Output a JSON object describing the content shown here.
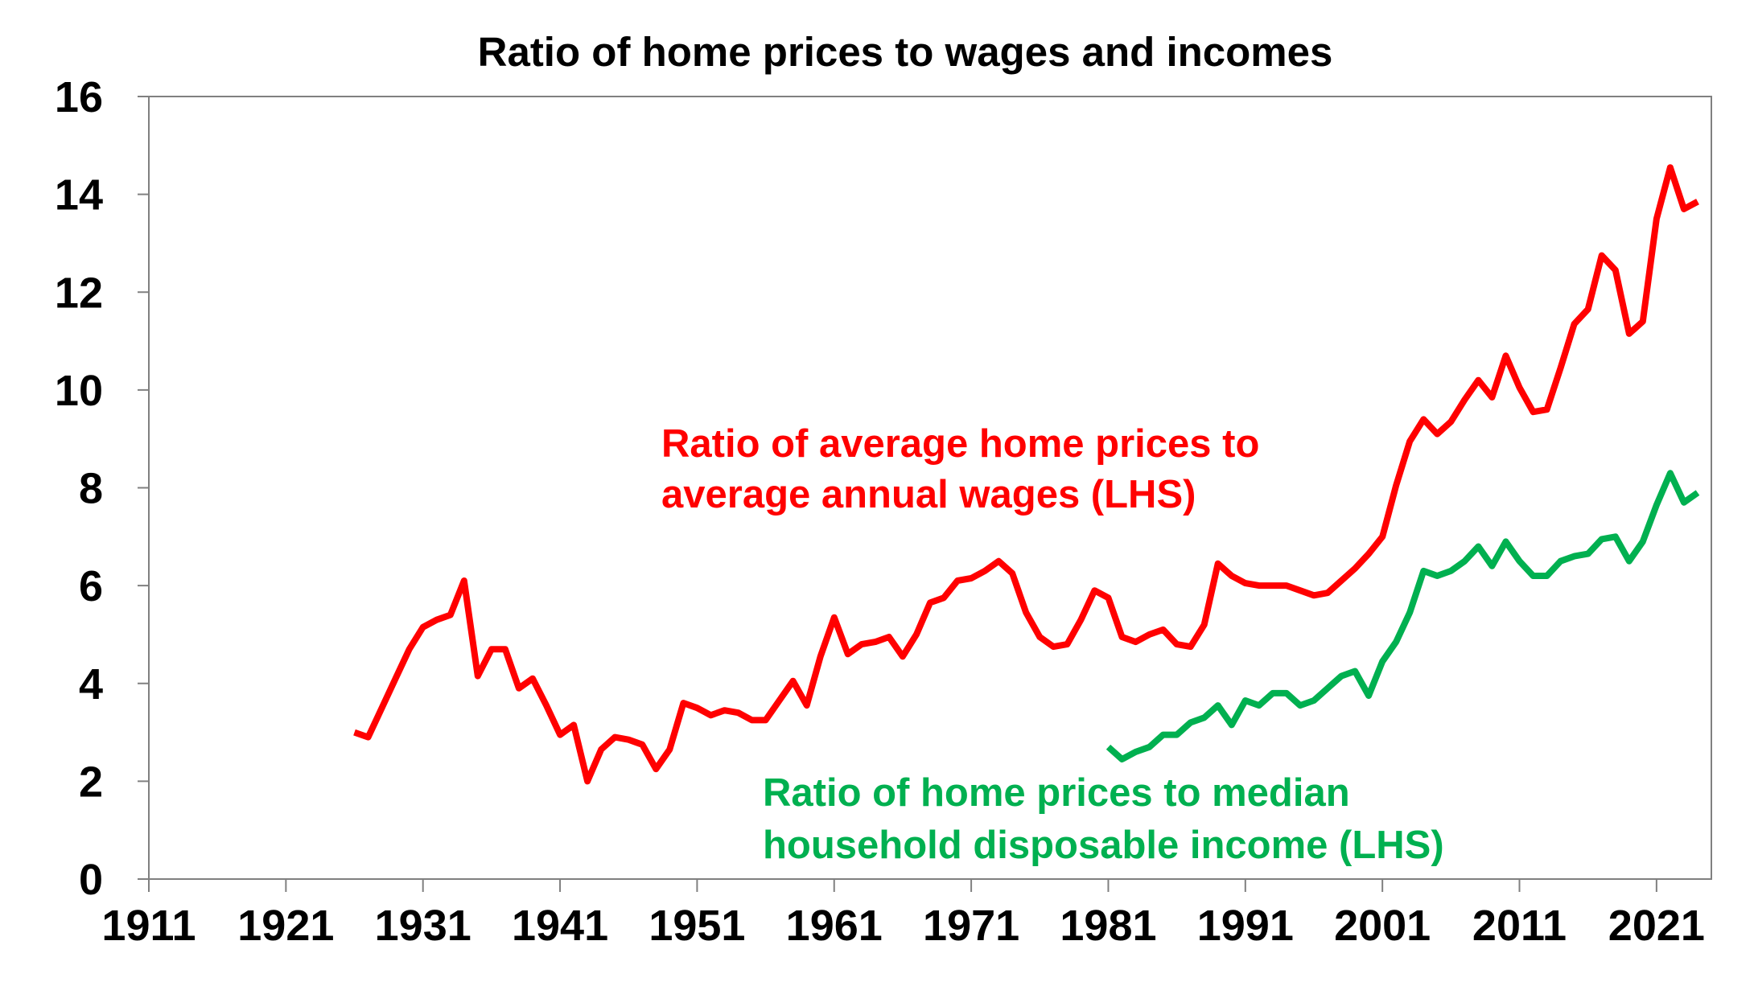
{
  "chart_data": {
    "type": "line",
    "title": "Ratio of home prices to wages and incomes",
    "xlabel": "",
    "ylabel": "",
    "xlim": [
      1911,
      2025
    ],
    "ylim": [
      0,
      16
    ],
    "x_ticks": [
      "1911",
      "1921",
      "1931",
      "1941",
      "1951",
      "1961",
      "1971",
      "1981",
      "1991",
      "2001",
      "2011",
      "2021"
    ],
    "y_ticks": [
      "0",
      "2",
      "4",
      "6",
      "8",
      "10",
      "12",
      "14",
      "16"
    ],
    "grid": false,
    "series": [
      {
        "annotation": [
          "Ratio of average home prices to",
          "average annual wages (LHS)"
        ],
        "color": "#FF0000",
        "points": [
          [
            1926,
            3.0
          ],
          [
            1927,
            2.9
          ],
          [
            1928,
            3.5
          ],
          [
            1929,
            4.1
          ],
          [
            1930,
            4.7
          ],
          [
            1931,
            5.15
          ],
          [
            1932,
            5.3
          ],
          [
            1933,
            5.4
          ],
          [
            1934,
            6.1
          ],
          [
            1935,
            4.15
          ],
          [
            1936,
            4.7
          ],
          [
            1937,
            4.7
          ],
          [
            1938,
            3.9
          ],
          [
            1939,
            4.1
          ],
          [
            1940,
            3.55
          ],
          [
            1941,
            2.95
          ],
          [
            1942,
            3.15
          ],
          [
            1943,
            2.0
          ],
          [
            1944,
            2.65
          ],
          [
            1945,
            2.9
          ],
          [
            1946,
            2.85
          ],
          [
            1947,
            2.75
          ],
          [
            1948,
            2.25
          ],
          [
            1949,
            2.65
          ],
          [
            1950,
            3.6
          ],
          [
            1951,
            3.5
          ],
          [
            1952,
            3.35
          ],
          [
            1953,
            3.45
          ],
          [
            1954,
            3.4
          ],
          [
            1955,
            3.25
          ],
          [
            1956,
            3.25
          ],
          [
            1957,
            3.65
          ],
          [
            1958,
            4.05
          ],
          [
            1959,
            3.55
          ],
          [
            1960,
            4.55
          ],
          [
            1961,
            5.35
          ],
          [
            1962,
            4.6
          ],
          [
            1963,
            4.8
          ],
          [
            1964,
            4.85
          ],
          [
            1965,
            4.95
          ],
          [
            1966,
            4.55
          ],
          [
            1967,
            5.0
          ],
          [
            1968,
            5.65
          ],
          [
            1969,
            5.75
          ],
          [
            1970,
            6.1
          ],
          [
            1971,
            6.15
          ],
          [
            1972,
            6.3
          ],
          [
            1973,
            6.5
          ],
          [
            1974,
            6.25
          ],
          [
            1975,
            5.45
          ],
          [
            1976,
            4.95
          ],
          [
            1977,
            4.75
          ],
          [
            1978,
            4.8
          ],
          [
            1979,
            5.3
          ],
          [
            1980,
            5.9
          ],
          [
            1981,
            5.75
          ],
          [
            1982,
            4.95
          ],
          [
            1983,
            4.85
          ],
          [
            1984,
            5.0
          ],
          [
            1985,
            5.1
          ],
          [
            1986,
            4.8
          ],
          [
            1987,
            4.75
          ],
          [
            1988,
            5.2
          ],
          [
            1989,
            6.45
          ],
          [
            1990,
            6.2
          ],
          [
            1991,
            6.05
          ],
          [
            1992,
            6.0
          ],
          [
            1993,
            6.0
          ],
          [
            1994,
            6.0
          ],
          [
            1995,
            5.9
          ],
          [
            1996,
            5.8
          ],
          [
            1997,
            5.85
          ],
          [
            1998,
            6.1
          ],
          [
            1999,
            6.35
          ],
          [
            2000,
            6.65
          ],
          [
            2001,
            7.0
          ],
          [
            2002,
            8.05
          ],
          [
            2003,
            8.95
          ],
          [
            2004,
            9.4
          ],
          [
            2005,
            9.1
          ],
          [
            2006,
            9.35
          ],
          [
            2007,
            9.8
          ],
          [
            2008,
            10.2
          ],
          [
            2009,
            9.85
          ],
          [
            2010,
            10.7
          ],
          [
            2011,
            10.05
          ],
          [
            2012,
            9.55
          ],
          [
            2013,
            9.6
          ],
          [
            2014,
            10.45
          ],
          [
            2015,
            11.35
          ],
          [
            2016,
            11.65
          ],
          [
            2017,
            12.75
          ],
          [
            2018,
            12.45
          ],
          [
            2019,
            11.15
          ],
          [
            2020,
            11.4
          ],
          [
            2021,
            13.5
          ],
          [
            2022,
            14.55
          ],
          [
            2023,
            13.7
          ],
          [
            2024,
            13.85
          ]
        ]
      },
      {
        "annotation": [
          "Ratio of home prices to median",
          "household disposable income (LHS)"
        ],
        "color": "#00B050",
        "points": [
          [
            1981,
            2.7
          ],
          [
            1982,
            2.45
          ],
          [
            1983,
            2.6
          ],
          [
            1984,
            2.7
          ],
          [
            1985,
            2.95
          ],
          [
            1986,
            2.95
          ],
          [
            1987,
            3.2
          ],
          [
            1988,
            3.3
          ],
          [
            1989,
            3.55
          ],
          [
            1990,
            3.15
          ],
          [
            1991,
            3.65
          ],
          [
            1992,
            3.55
          ],
          [
            1993,
            3.8
          ],
          [
            1994,
            3.8
          ],
          [
            1995,
            3.55
          ],
          [
            1996,
            3.65
          ],
          [
            1997,
            3.9
          ],
          [
            1998,
            4.15
          ],
          [
            1999,
            4.25
          ],
          [
            2000,
            3.75
          ],
          [
            2001,
            4.45
          ],
          [
            2002,
            4.85
          ],
          [
            2003,
            5.45
          ],
          [
            2004,
            6.3
          ],
          [
            2005,
            6.2
          ],
          [
            2006,
            6.3
          ],
          [
            2007,
            6.5
          ],
          [
            2008,
            6.8
          ],
          [
            2009,
            6.4
          ],
          [
            2010,
            6.9
          ],
          [
            2011,
            6.5
          ],
          [
            2012,
            6.2
          ],
          [
            2013,
            6.2
          ],
          [
            2014,
            6.5
          ],
          [
            2015,
            6.6
          ],
          [
            2016,
            6.65
          ],
          [
            2017,
            6.95
          ],
          [
            2018,
            7.0
          ],
          [
            2019,
            6.5
          ],
          [
            2020,
            6.9
          ],
          [
            2021,
            7.65
          ],
          [
            2022,
            8.3
          ],
          [
            2023,
            7.7
          ],
          [
            2024,
            7.9
          ]
        ]
      }
    ]
  }
}
